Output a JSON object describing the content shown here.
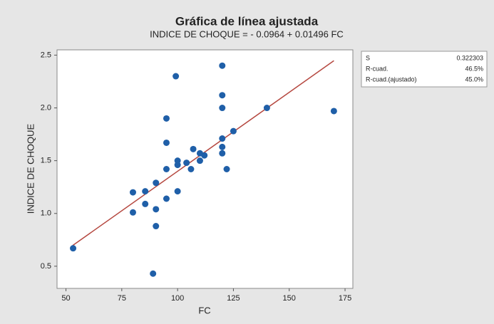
{
  "chart_data": {
    "type": "scatter",
    "title": "Gráfica de línea ajustada",
    "subtitle": "INDICE DE CHOQUE = - 0.0964 + 0.01496 FC",
    "x_label": "FC",
    "y_label": "INDICE DE CHOQUE",
    "x": [
      53.2,
      80,
      80,
      85.5,
      85.5,
      89,
      90.3,
      90.3,
      90.3,
      95,
      95,
      95,
      95,
      99.2,
      100,
      100,
      100,
      104,
      106,
      107,
      110,
      110,
      112,
      120,
      120,
      120,
      120,
      120,
      120,
      122,
      125,
      140,
      170
    ],
    "y": [
      0.67,
      1.2,
      1.01,
      1.21,
      1.09,
      0.43,
      1.29,
      1.04,
      0.88,
      1.9,
      1.67,
      1.42,
      1.14,
      2.3,
      1.5,
      1.46,
      1.21,
      1.48,
      1.42,
      1.61,
      1.57,
      1.5,
      1.55,
      2.4,
      2.12,
      2.0,
      1.71,
      1.63,
      1.57,
      1.42,
      1.78,
      2.0,
      1.97
    ],
    "color": "#1f5fa8",
    "fit_line": {
      "x": [
        53,
        170
      ],
      "y": [
        0.6965,
        2.4468
      ],
      "color": "#b5473f"
    },
    "xlim": [
      46,
      178.5
    ],
    "xticks": [
      50,
      75,
      100,
      125,
      150,
      175
    ],
    "ylim": [
      0.29,
      2.55
    ],
    "yticks": [
      0.5,
      {
        "value": 1,
        "label": "1.0"
      },
      1.5,
      {
        "value": 2,
        "label": "2.0"
      },
      2.5
    ],
    "grid": false,
    "stats": [
      {
        "label": "S",
        "value": "0.322303"
      },
      {
        "label": "R-cuad.",
        "value": "46.5%"
      },
      {
        "label": "R-cuad.(ajustado)",
        "value": "45.0%"
      }
    ]
  }
}
